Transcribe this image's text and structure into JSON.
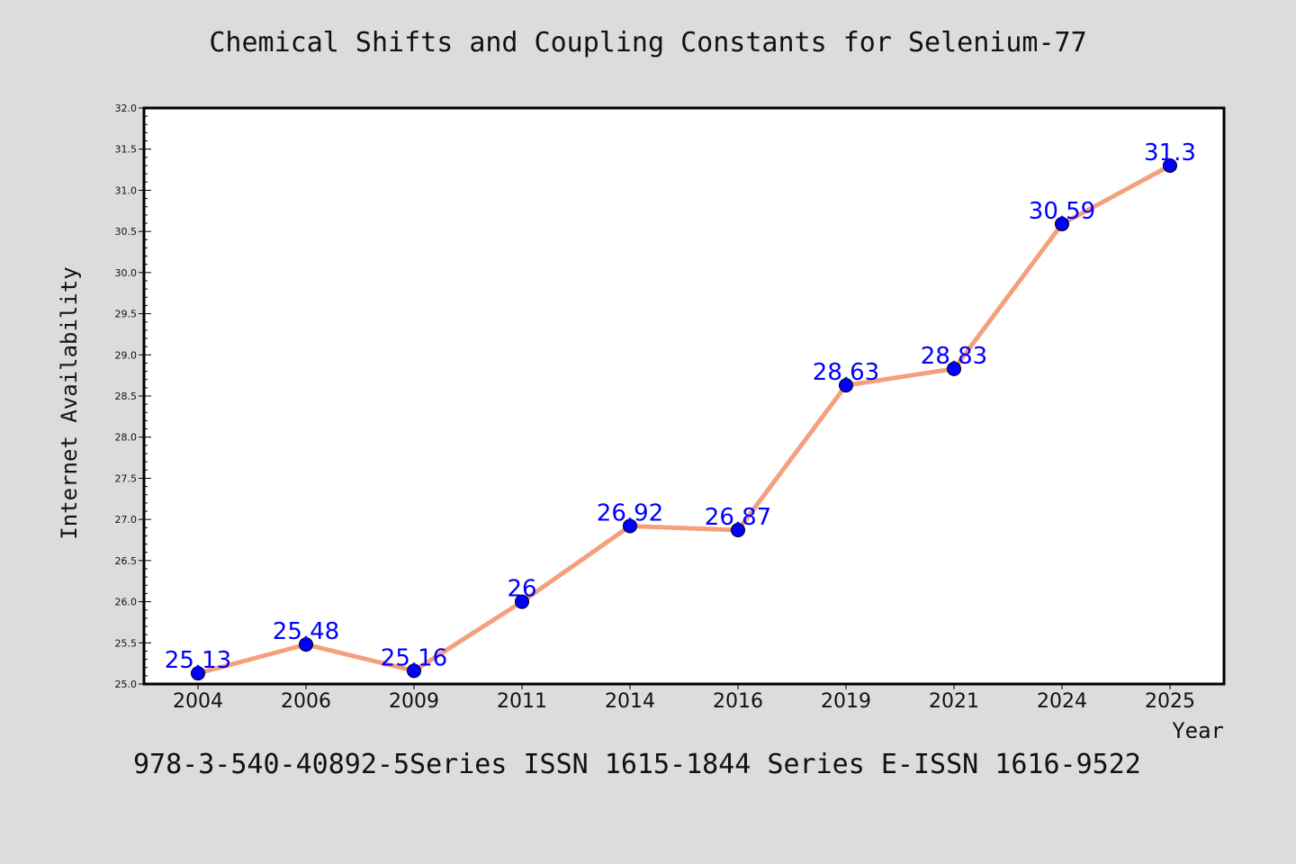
{
  "chart_data": {
    "type": "line",
    "title": "Chemical Shifts and Coupling Constants for Selenium-77",
    "xlabel": "Year",
    "ylabel": "Internet Availability",
    "categories": [
      "2004",
      "2006",
      "2009",
      "2011",
      "2014",
      "2016",
      "2019",
      "2021",
      "2024",
      "2025"
    ],
    "values": [
      25.13,
      25.48,
      25.16,
      26,
      26.92,
      26.87,
      28.63,
      28.83,
      30.59,
      31.3
    ],
    "data_labels": [
      "25.13",
      "25.48",
      "25.16",
      "26",
      "26.92",
      "26.87",
      "28.63",
      "28.83",
      "30.59",
      "31.3"
    ],
    "yticks": [
      "25.0",
      "25.5",
      "26.0",
      "26.5",
      "27.0",
      "27.5",
      "28.0",
      "28.5",
      "29.0",
      "29.5",
      "30.0",
      "30.5",
      "31.0",
      "31.5",
      "32.0"
    ],
    "ylim": [
      25,
      32
    ],
    "grid": false,
    "colors": {
      "line": "#f4a07c",
      "marker": "#0000ff",
      "label": "#0000ff",
      "background": "#dcdcdc",
      "plot_background": "#ffffff"
    }
  },
  "footer": "978-3-540-40892-5Series ISSN 1615-1844 Series E-ISSN 1616-9522"
}
